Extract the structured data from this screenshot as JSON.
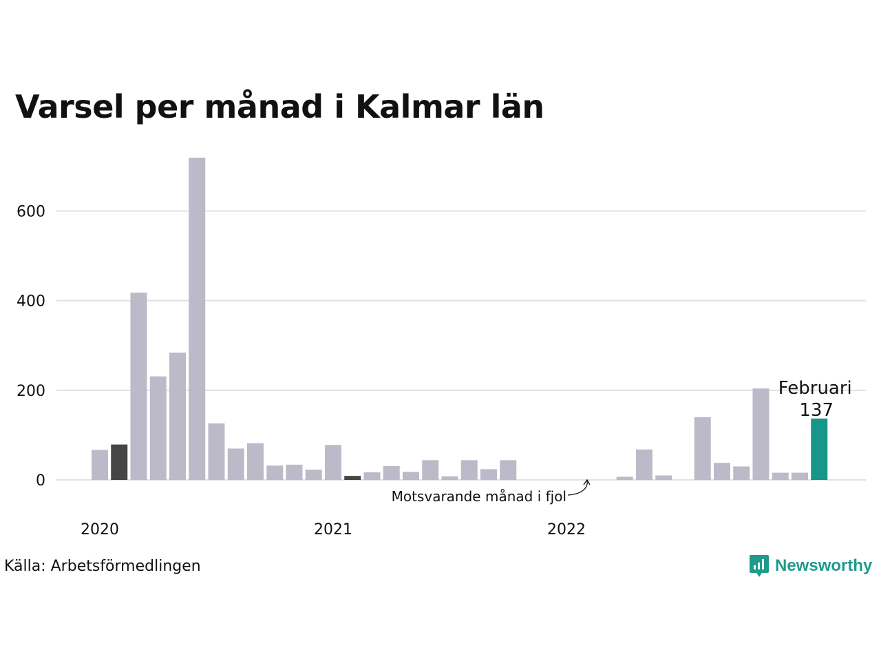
{
  "title": "Varsel per månad i Kalmar län",
  "source": "Källa: Arbetsförmedlingen",
  "brand": {
    "name": "Newsworthy",
    "color": "#1f9b8d",
    "icon": "bar-chart-speech-icon"
  },
  "chart_data": {
    "type": "bar",
    "ylim": [
      0,
      720
    ],
    "yticks": [
      0,
      200,
      400,
      600
    ],
    "xticks": [
      {
        "label": "2020",
        "index": 0
      },
      {
        "label": "2021",
        "index": 12
      },
      {
        "label": "2022",
        "index": 24
      }
    ],
    "grid": true,
    "colors": {
      "default": "#bcbac8",
      "same_month_last_year": "#454545",
      "highlight": "#16978a",
      "grid": "#e1e1e1"
    },
    "values": [
      67,
      79,
      418,
      231,
      284,
      719,
      126,
      70,
      82,
      32,
      34,
      23,
      78,
      9,
      17,
      31,
      18,
      44,
      8,
      44,
      24,
      44,
      0,
      0,
      0,
      0,
      0,
      7,
      68,
      10,
      0,
      140,
      38,
      30,
      204,
      16,
      16,
      137
    ],
    "same_month_last_year_indices": [
      1,
      13
    ],
    "highlight_index": 37,
    "highlight_label": "Februari",
    "highlight_value_label": "137",
    "annotation": {
      "text": "Motsvarande månad i fjol"
    }
  }
}
